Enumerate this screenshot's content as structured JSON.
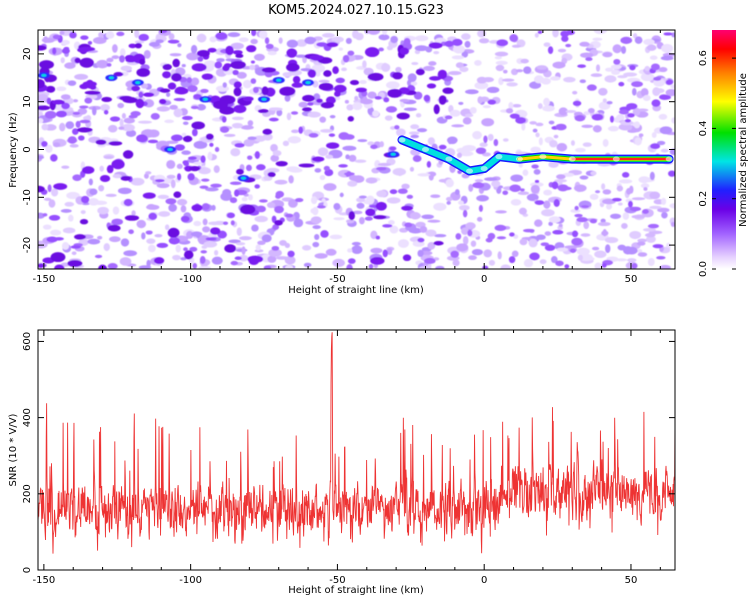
{
  "title": "KOM5.2024.027.10.15.G23",
  "chart_data": [
    {
      "type": "heatmap",
      "xlabel": "Height of straight line (km)",
      "ylabel": "Frequency (Hz)",
      "xlim": [
        -152,
        65
      ],
      "ylim": [
        -25,
        25
      ],
      "xticks": [
        -150,
        -100,
        -50,
        0,
        50
      ],
      "yticks": [
        -20,
        -10,
        0,
        10,
        20
      ],
      "colorbar": {
        "label": "Normalized spectral amplitude",
        "range": [
          0,
          0.68
        ],
        "ticks": [
          0.0,
          0.2,
          0.4,
          0.6
        ],
        "tick_labels": [
          "0.0",
          "0.2",
          "0.4",
          "0.6"
        ],
        "colormap": "rainbow (white, violet, blue, cyan, green, yellow, orange, red, magenta)"
      },
      "signal_track": {
        "description": "coherent Doppler trace",
        "points": [
          [
            -28,
            2
          ],
          [
            -20,
            0
          ],
          [
            -12,
            -2
          ],
          [
            -5,
            -4.5
          ],
          [
            0,
            -4
          ],
          [
            5,
            -1.5
          ],
          [
            12,
            -2
          ],
          [
            20,
            -1.5
          ],
          [
            30,
            -2
          ],
          [
            45,
            -2
          ],
          [
            63,
            -2
          ]
        ]
      },
      "grid": false
    },
    {
      "type": "line",
      "xlabel": "Height of straight line (km)",
      "ylabel": "SNR (10 * V/V)",
      "xlim": [
        -152,
        65
      ],
      "ylim": [
        0,
        630
      ],
      "xticks": [
        -150,
        -100,
        -50,
        0,
        50
      ],
      "yticks": [
        0,
        200,
        400,
        600
      ],
      "series_color": "#ee3333",
      "series_description": "noisy SNR trace, baseline ~160 rising to ~200 for heights above ~10 km, peak ~630 near -52 km",
      "grid": false
    }
  ]
}
